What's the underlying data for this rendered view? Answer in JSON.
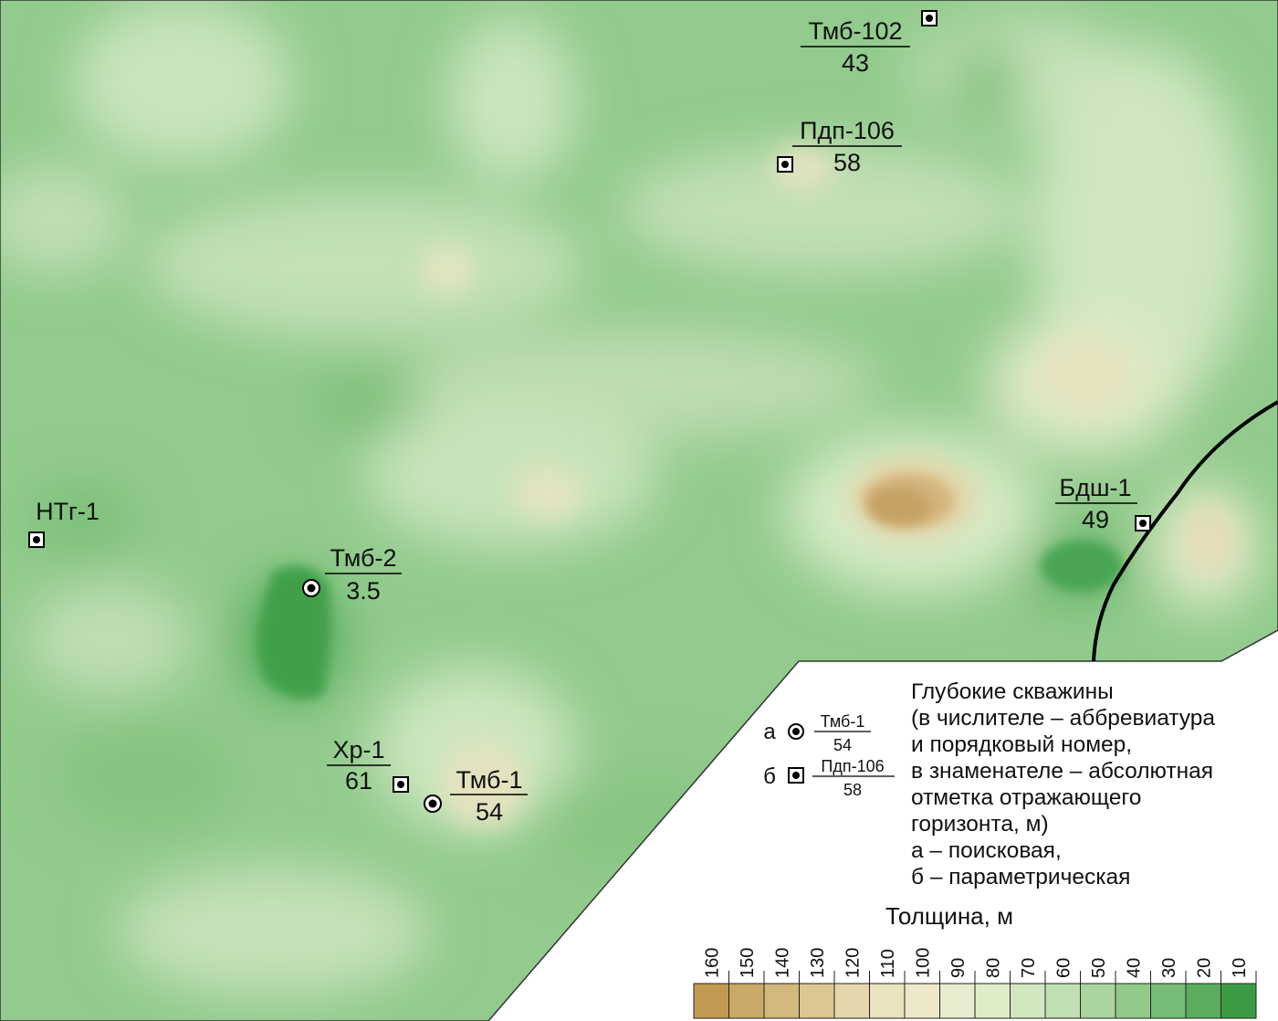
{
  "wells": [
    {
      "name": "Тмб-102",
      "value": "43",
      "type": "б"
    },
    {
      "name": "Пдп-106",
      "value": "58",
      "type": "б"
    },
    {
      "name": "НТг-1",
      "value": "",
      "type": "б"
    },
    {
      "name": "Тмб-2",
      "value": "3.5",
      "type": "а"
    },
    {
      "name": "Хр-1",
      "value": "61",
      "type": "б"
    },
    {
      "name": "Тмб-1",
      "value": "54",
      "type": "а"
    },
    {
      "name": "Бдш-1",
      "value": "49",
      "type": "б"
    }
  ],
  "legend": {
    "lines": [
      "Глубокие скважины",
      "(в числителе – аббревиатура",
      "и порядковый номер,",
      "в знаменателе – абсолютная",
      "отметка отражающего",
      "горизонта, м)",
      "а – поисковая,",
      "б – параметрическая"
    ],
    "example_a": {
      "letter": "а",
      "name": "Тмб-1",
      "value": "54"
    },
    "example_b": {
      "letter": "б",
      "name": "Пдп-106",
      "value": "58"
    }
  },
  "scale": {
    "title": "Толщина, м",
    "ticks": [
      "160",
      "150",
      "140",
      "130",
      "120",
      "110",
      "100",
      "90",
      "80",
      "70",
      "60",
      "50",
      "40",
      "30",
      "20",
      "10"
    ],
    "colors": [
      "#c19a52",
      "#caa966",
      "#d3b87c",
      "#dcc793",
      "#e5d6ab",
      "#ebe2bf",
      "#eee8cb",
      "#e8ecce",
      "#dfecc8",
      "#d1e7c0",
      "#c0dfb2",
      "#aad59f",
      "#92ca8a",
      "#77bc74",
      "#5aad5c",
      "#3c9c45"
    ]
  },
  "colors": {
    "background_green": "#8fc98b",
    "light_green": "#c8e2bc",
    "dark_green": "#4aa553",
    "brown": "#c39b58"
  }
}
